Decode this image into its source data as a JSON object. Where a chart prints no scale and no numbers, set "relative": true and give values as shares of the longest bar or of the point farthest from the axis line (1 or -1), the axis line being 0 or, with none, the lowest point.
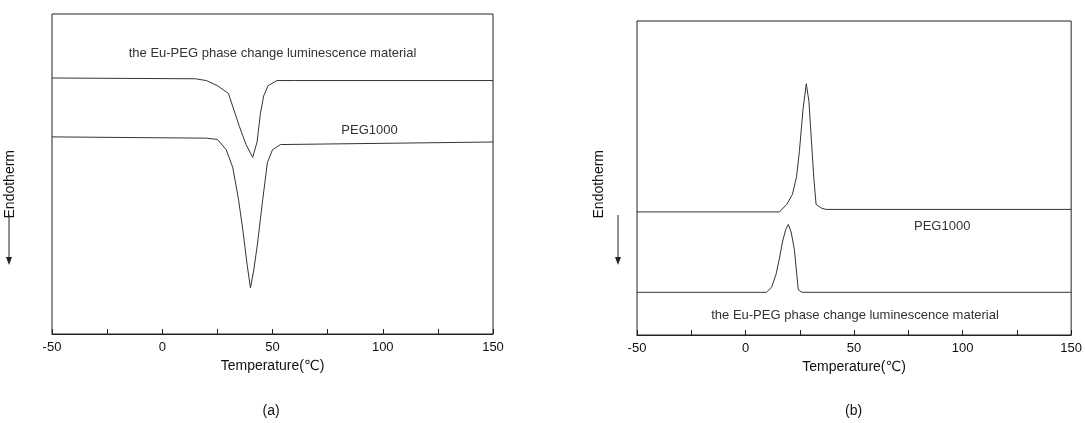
{
  "chart_data": [
    {
      "type": "line",
      "title": "(a)",
      "xlabel": "Temperature(℃)",
      "ylabel": "Endotherm",
      "relative": true,
      "xlim": [
        -50,
        150
      ],
      "xticks": [
        -50,
        0,
        50,
        100,
        150
      ],
      "grid": false,
      "legend": false,
      "marker": "none",
      "line_style": "solid",
      "series": [
        {
          "name": "the Eu-PEG phase change luminescence material",
          "color": "#333333",
          "x": [
            -50,
            15,
            20,
            25,
            30,
            35,
            38,
            41,
            43,
            44.5,
            46,
            48,
            52,
            60,
            150
          ],
          "values": [
            1.0,
            0.997,
            0.99,
            0.97,
            0.94,
            0.81,
            0.74,
            0.69,
            0.75,
            0.86,
            0.93,
            0.97,
            0.99,
            0.99,
            0.99
          ]
        },
        {
          "name": "PEG1000",
          "color": "#333333",
          "x": [
            -50,
            20,
            25,
            29,
            32,
            34.5,
            36.5,
            38.5,
            40,
            41.5,
            43,
            45.5,
            47.7,
            50,
            53.6,
            150
          ],
          "values": [
            0.77,
            0.765,
            0.76,
            0.72,
            0.65,
            0.53,
            0.41,
            0.27,
            0.18,
            0.25,
            0.34,
            0.52,
            0.67,
            0.72,
            0.74,
            0.75
          ]
        }
      ]
    },
    {
      "type": "line",
      "title": "(b)",
      "xlabel": "Temperature(℃)",
      "ylabel": "Endotherm",
      "relative": true,
      "xlim": [
        -50,
        150
      ],
      "xticks": [
        -50,
        0,
        50,
        100,
        150
      ],
      "grid": false,
      "legend": false,
      "marker": "none",
      "line_style": "solid",
      "series": [
        {
          "name": "PEG1000",
          "color": "#333333",
          "x": [
            -50,
            10,
            15.6,
            19,
            21.6,
            23.5,
            24.8,
            26.5,
            28,
            29.2,
            30.3,
            31.5,
            32.5,
            35,
            37,
            150
          ],
          "values": [
            0.49,
            0.49,
            0.49,
            0.52,
            0.56,
            0.63,
            0.73,
            0.9,
            1.0,
            0.93,
            0.78,
            0.62,
            0.52,
            0.505,
            0.5,
            0.5
          ]
        },
        {
          "name": "the Eu-PEG phase change luminescence material",
          "color": "#333333",
          "x": [
            -50,
            9.6,
            12,
            14,
            15.5,
            17,
            18.5,
            19.7,
            21,
            22.5,
            23.5,
            24.3,
            26,
            150
          ],
          "values": [
            0.17,
            0.17,
            0.19,
            0.24,
            0.3,
            0.37,
            0.42,
            0.44,
            0.41,
            0.34,
            0.25,
            0.18,
            0.17,
            0.17
          ]
        }
      ]
    }
  ]
}
